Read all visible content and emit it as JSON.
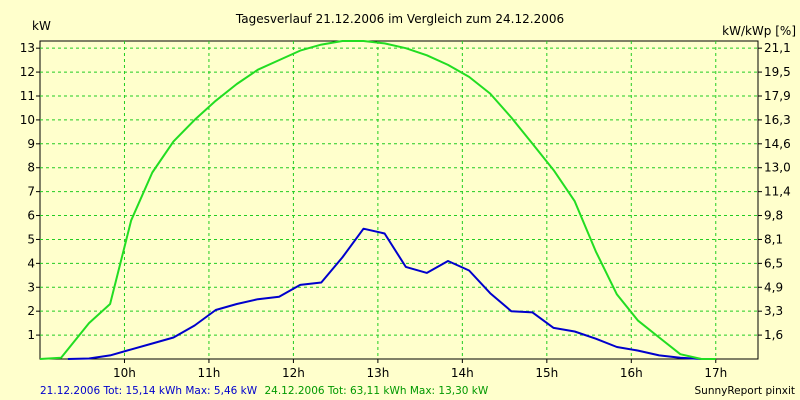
{
  "chart_data": {
    "type": "line",
    "title": "Tagesverlauf 21.12.2006 im Vergleich zum 24.12.2006",
    "ylabel_left": "kW",
    "ylabel_right": "kW/kWp [%]",
    "ylim": [
      0,
      13.3
    ],
    "y_ticks": [
      1,
      2,
      3,
      4,
      5,
      6,
      7,
      8,
      9,
      10,
      11,
      12,
      13
    ],
    "y_right_ticks": [
      {
        "y": 1,
        "label": "1,6"
      },
      {
        "y": 2,
        "label": "3,3"
      },
      {
        "y": 3,
        "label": "4,9"
      },
      {
        "y": 4,
        "label": "6,5"
      },
      {
        "y": 5,
        "label": "8,1"
      },
      {
        "y": 6,
        "label": "9,8"
      },
      {
        "y": 7,
        "label": "11,4"
      },
      {
        "y": 8,
        "label": "13,0"
      },
      {
        "y": 9,
        "label": "14,6"
      },
      {
        "y": 10,
        "label": "16,3"
      },
      {
        "y": 11,
        "label": "17,9"
      },
      {
        "y": 12,
        "label": "19,5"
      },
      {
        "y": 13,
        "label": "21,1"
      }
    ],
    "xlim": [
      9.0,
      17.5
    ],
    "x_ticks": [
      {
        "x": 10,
        "label": "10h"
      },
      {
        "x": 11,
        "label": "11h"
      },
      {
        "x": 12,
        "label": "12h"
      },
      {
        "x": 13,
        "label": "13h"
      },
      {
        "x": 14,
        "label": "14h"
      },
      {
        "x": 15,
        "label": "15h"
      },
      {
        "x": 16,
        "label": "16h"
      },
      {
        "x": 17,
        "label": "17h"
      }
    ],
    "grid": true,
    "series": [
      {
        "name": "21.12.2006",
        "color": "#0000cc",
        "points": [
          [
            9.33,
            0
          ],
          [
            9.58,
            0.02
          ],
          [
            9.83,
            0.15
          ],
          [
            10.08,
            0.4
          ],
          [
            10.33,
            0.65
          ],
          [
            10.58,
            0.9
          ],
          [
            10.83,
            1.4
          ],
          [
            11.08,
            2.05
          ],
          [
            11.33,
            2.3
          ],
          [
            11.58,
            2.5
          ],
          [
            11.83,
            2.6
          ],
          [
            12.08,
            3.1
          ],
          [
            12.33,
            3.2
          ],
          [
            12.58,
            4.25
          ],
          [
            12.83,
            5.45
          ],
          [
            13.08,
            5.25
          ],
          [
            13.33,
            3.85
          ],
          [
            13.58,
            3.6
          ],
          [
            13.83,
            4.1
          ],
          [
            14.08,
            3.7
          ],
          [
            14.33,
            2.75
          ],
          [
            14.58,
            2.0
          ],
          [
            14.83,
            1.95
          ],
          [
            15.08,
            1.3
          ],
          [
            15.33,
            1.15
          ],
          [
            15.58,
            0.85
          ],
          [
            15.83,
            0.5
          ],
          [
            16.08,
            0.35
          ],
          [
            16.33,
            0.15
          ],
          [
            16.58,
            0.05
          ],
          [
            16.83,
            0.0
          ]
        ]
      },
      {
        "name": "24.12.2006",
        "color": "#22dd22",
        "points": [
          [
            9.0,
            0
          ],
          [
            9.25,
            0.05
          ],
          [
            9.58,
            1.5
          ],
          [
            9.83,
            2.3
          ],
          [
            10.08,
            5.8
          ],
          [
            10.33,
            7.8
          ],
          [
            10.58,
            9.1
          ],
          [
            10.83,
            10.0
          ],
          [
            11.08,
            10.8
          ],
          [
            11.33,
            11.5
          ],
          [
            11.58,
            12.1
          ],
          [
            11.83,
            12.5
          ],
          [
            12.08,
            12.9
          ],
          [
            12.33,
            13.15
          ],
          [
            12.58,
            13.3
          ],
          [
            12.83,
            13.3
          ],
          [
            13.08,
            13.2
          ],
          [
            13.33,
            13.0
          ],
          [
            13.58,
            12.7
          ],
          [
            13.83,
            12.3
          ],
          [
            14.08,
            11.8
          ],
          [
            14.33,
            11.1
          ],
          [
            14.58,
            10.1
          ],
          [
            14.83,
            9.0
          ],
          [
            15.08,
            7.9
          ],
          [
            15.33,
            6.6
          ],
          [
            15.58,
            4.5
          ],
          [
            15.83,
            2.7
          ],
          [
            16.08,
            1.6
          ],
          [
            16.33,
            0.9
          ],
          [
            16.58,
            0.2
          ],
          [
            16.83,
            0.0
          ],
          [
            17.0,
            0.0
          ]
        ]
      }
    ]
  },
  "footer": {
    "series1_summary": "21.12.2006 Tot: 15,14 kWh Max: 5,46 kW",
    "series2_summary": "24.12.2006 Tot: 63,11 kWh Max: 13,30 kW",
    "credit": "SunnyReport pinxit"
  }
}
